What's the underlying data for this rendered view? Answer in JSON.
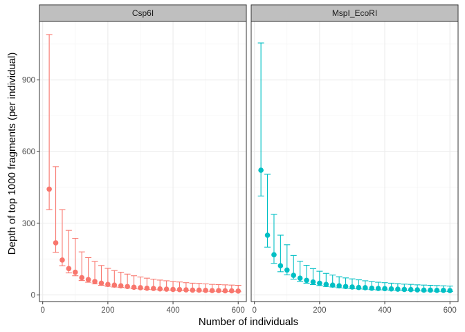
{
  "chart_data": {
    "type": "scatter",
    "xlabel": "Number of individuals",
    "ylabel": "Depth of top 1000 fragments (per individual)",
    "xlim": [
      -10,
      625
    ],
    "ylim": [
      -28,
      1145
    ],
    "x_ticks": [
      0,
      200,
      400,
      600
    ],
    "y_ticks": [
      0,
      300,
      600,
      900
    ],
    "grid": true,
    "legend": "none",
    "panels": [
      {
        "name": "Csp6I",
        "color": "#f8766d",
        "x": [
          20,
          40,
          60,
          80,
          100,
          120,
          140,
          160,
          180,
          200,
          220,
          240,
          260,
          280,
          300,
          320,
          340,
          360,
          380,
          400,
          420,
          440,
          460,
          480,
          500,
          520,
          540,
          560,
          580,
          600
        ],
        "y": [
          443,
          218,
          146,
          110,
          95,
          72,
          64,
          56,
          49,
          44,
          41,
          38,
          35,
          32,
          30,
          28,
          27,
          25,
          24,
          23,
          22,
          21,
          20,
          20,
          19,
          18,
          18,
          17,
          17,
          16
        ],
        "lower": [
          357,
          178,
          122,
          92,
          80,
          60,
          53,
          46,
          40,
          36,
          33,
          31,
          29,
          26,
          25,
          23,
          22,
          21,
          20,
          19,
          18,
          17,
          17,
          16,
          15,
          15,
          15,
          14,
          14,
          13
        ],
        "upper": [
          1090,
          537,
          357,
          270,
          237,
          180,
          156,
          140,
          123,
          111,
          102,
          95,
          87,
          80,
          75,
          70,
          66,
          62,
          59,
          56,
          54,
          51,
          49,
          48,
          46,
          44,
          43,
          42,
          41,
          40
        ]
      },
      {
        "name": "MspI_EcoRI",
        "color": "#00bfc4",
        "x": [
          20,
          40,
          60,
          80,
          100,
          120,
          140,
          160,
          180,
          200,
          220,
          240,
          260,
          280,
          300,
          320,
          340,
          360,
          380,
          400,
          420,
          440,
          460,
          480,
          500,
          520,
          540,
          560,
          580,
          600
        ],
        "y": [
          522,
          250,
          168,
          122,
          104,
          82,
          70,
          61,
          54,
          49,
          44,
          41,
          38,
          35,
          33,
          31,
          30,
          28,
          27,
          26,
          25,
          24,
          23,
          22,
          21,
          20,
          20,
          19,
          19,
          18
        ],
        "lower": [
          414,
          200,
          132,
          97,
          84,
          66,
          56,
          49,
          43,
          39,
          35,
          33,
          30,
          28,
          26,
          25,
          24,
          22,
          21,
          21,
          20,
          19,
          18,
          17,
          17,
          16,
          16,
          15,
          15,
          14
        ],
        "upper": [
          1055,
          505,
          337,
          250,
          210,
          165,
          141,
          124,
          110,
          99,
          90,
          83,
          76,
          71,
          67,
          63,
          59,
          56,
          53,
          51,
          49,
          47,
          45,
          44,
          42,
          41,
          40,
          39,
          38,
          37
        ]
      }
    ]
  }
}
